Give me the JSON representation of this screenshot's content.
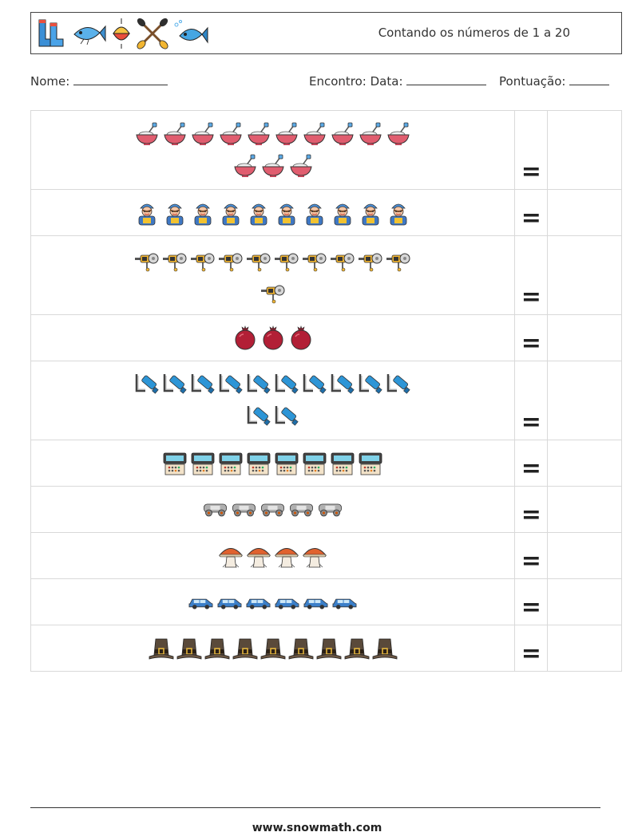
{
  "header": {
    "title": "Contando os números de 1 a 20",
    "icons": [
      "boots-icon",
      "fish-icon",
      "bobber-icon",
      "crossed-paddles-icon",
      "blue-fish-icon"
    ]
  },
  "form": {
    "name_label": "Nome:",
    "encounter_label": "Encontro: Data:",
    "score_label": "Pontuação:"
  },
  "equals_sign": "=",
  "rows": [
    {
      "icon": "mixing-bowl-icon",
      "count": 13
    },
    {
      "icon": "worker-icon",
      "count": 10
    },
    {
      "icon": "angle-grinder-icon",
      "count": 11
    },
    {
      "icon": "pomegranate-icon",
      "count": 3
    },
    {
      "icon": "hydrant-pipe-icon",
      "count": 12
    },
    {
      "icon": "cash-register-icon",
      "count": 8
    },
    {
      "icon": "train-car-icon",
      "count": 5
    },
    {
      "icon": "mushroom-icon",
      "count": 4
    },
    {
      "icon": "car-icon",
      "count": 6
    },
    {
      "icon": "pilgrim-hat-icon",
      "count": 9
    }
  ],
  "footer": {
    "url": "www.snowmath.com"
  }
}
